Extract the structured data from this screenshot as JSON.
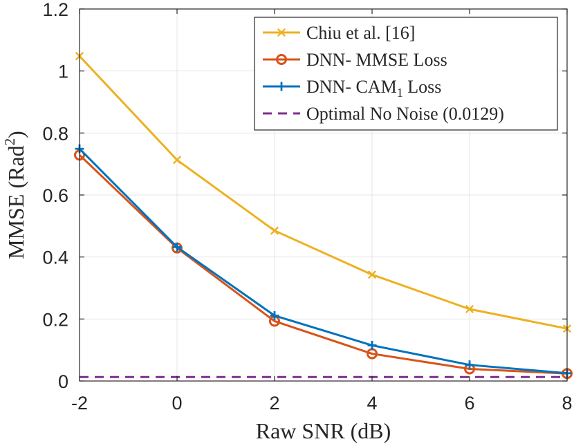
{
  "chart_data": {
    "type": "line",
    "title": "",
    "xlabel": "Raw SNR (dB)",
    "ylabel": {
      "base": "MMSE (Rad",
      "sup": "2",
      "tail": ")"
    },
    "xlim": [
      -2,
      8
    ],
    "ylim": [
      0,
      1.2
    ],
    "x_ticks": [
      -2,
      0,
      2,
      4,
      6,
      8
    ],
    "x_tick_labels": [
      "-2",
      "0",
      "2",
      "4",
      "6",
      "8"
    ],
    "y_ticks": [
      0,
      0.2,
      0.4,
      0.6,
      0.8,
      1,
      1.2
    ],
    "y_tick_labels": [
      "0",
      "0.2",
      "0.4",
      "0.6",
      "0.8",
      "1",
      "1.2"
    ],
    "grid": true,
    "legend_position": "top-right",
    "x": [
      -2,
      0,
      2,
      4,
      6,
      8
    ],
    "series": [
      {
        "name": "Chiu et al. [16]",
        "key": "chiu",
        "color": "#EDB120",
        "marker": "x",
        "dashed": false,
        "values": [
          1.048,
          0.713,
          0.485,
          0.343,
          0.232,
          0.169
        ]
      },
      {
        "name": "DNN- MMSE Loss",
        "key": "mmse",
        "color": "#D95319",
        "marker": "o",
        "dashed": false,
        "values": [
          0.729,
          0.429,
          0.193,
          0.088,
          0.039,
          0.024
        ]
      },
      {
        "name": "DNN- CAM",
        "name_sub": "1",
        "name_tail": " Loss",
        "key": "cam",
        "color": "#0072BD",
        "marker": "+",
        "dashed": false,
        "values": [
          0.749,
          0.432,
          0.211,
          0.115,
          0.052,
          0.025
        ]
      },
      {
        "name": "Optimal No Noise (0.0129)",
        "key": "optimal",
        "color": "#7E2F8E",
        "marker": "none",
        "dashed": true,
        "values": [
          0.0129,
          0.0129,
          0.0129,
          0.0129,
          0.0129,
          0.0129
        ]
      }
    ]
  }
}
